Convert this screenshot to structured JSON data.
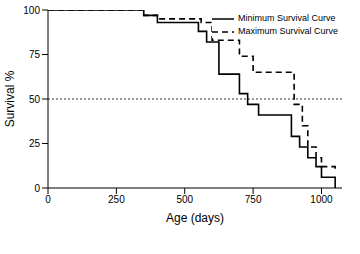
{
  "chart_data": {
    "type": "step",
    "x_label": "Age (days)",
    "y_label": "Survival %",
    "xlim": [
      0,
      1075
    ],
    "xticks": [
      0,
      250,
      500,
      750,
      1000
    ],
    "ylim": [
      0,
      100
    ],
    "yticks": [
      0,
      25,
      50,
      75,
      100
    ],
    "grid": false,
    "legend": "upper right",
    "hline": {
      "y": 50,
      "line_style": "dotted"
    },
    "series": [
      {
        "name": "Minimum Survival Curve",
        "color": "#000000",
        "line_style": "solid",
        "x": [
          0,
          350,
          400,
          550,
          580,
          625,
          700,
          730,
          770,
          890,
          920,
          950,
          980,
          1000,
          1050
        ],
        "values": [
          100,
          97,
          93,
          88,
          82,
          64,
          53,
          47,
          41,
          29,
          23,
          17,
          12,
          6,
          0
        ]
      },
      {
        "name": "Maximum Survival Curve",
        "color": "#000000",
        "line_style": "dashed",
        "x": [
          0,
          350,
          400,
          560,
          600,
          700,
          750,
          900,
          930,
          950,
          980,
          1000,
          1050
        ],
        "values": [
          100,
          97,
          95,
          93,
          83,
          74,
          65,
          47,
          35,
          23,
          17,
          12,
          9
        ]
      }
    ]
  }
}
